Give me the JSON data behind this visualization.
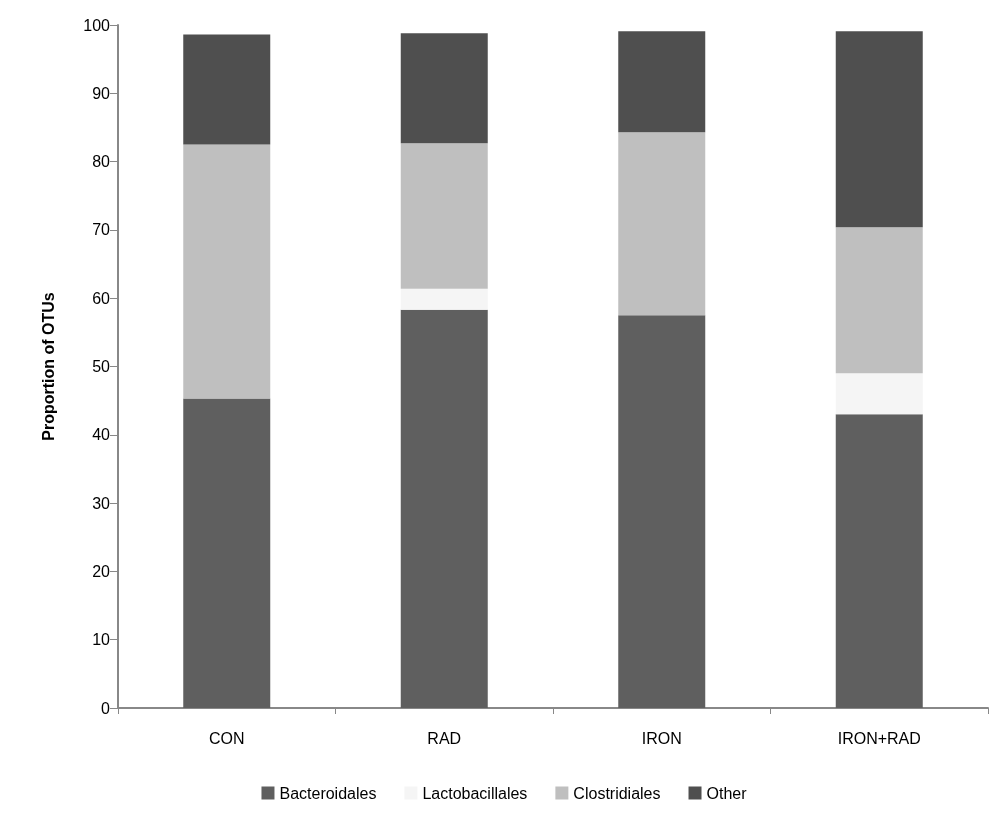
{
  "chart_data": {
    "type": "bar",
    "stacked": true,
    "ylabel": "Proportion of OTUs",
    "categories": [
      "CON",
      "RAD",
      "IRON",
      "IRON+RAD"
    ],
    "series": [
      {
        "name": "Bacteroidales",
        "color": "#5f5f5f",
        "values": [
          45.3,
          58.3,
          57.5,
          43.0
        ]
      },
      {
        "name": "Lactobacillales",
        "color": "#f5f5f5",
        "values": [
          null,
          3.1,
          0,
          6.0
        ]
      },
      {
        "name": "Clostridiales",
        "color": "#bfbfbf",
        "values": [
          37.2,
          21.3,
          26.8,
          21.4
        ]
      },
      {
        "name": "Other",
        "color": "#4f4f4f",
        "values": [
          16.1,
          16.1,
          14.8,
          28.7
        ]
      }
    ],
    "ylim": [
      0,
      100
    ],
    "yticks": [
      0,
      10,
      20,
      30,
      40,
      50,
      60,
      70,
      80,
      90,
      100
    ],
    "grid": false,
    "legend": "bottom"
  }
}
